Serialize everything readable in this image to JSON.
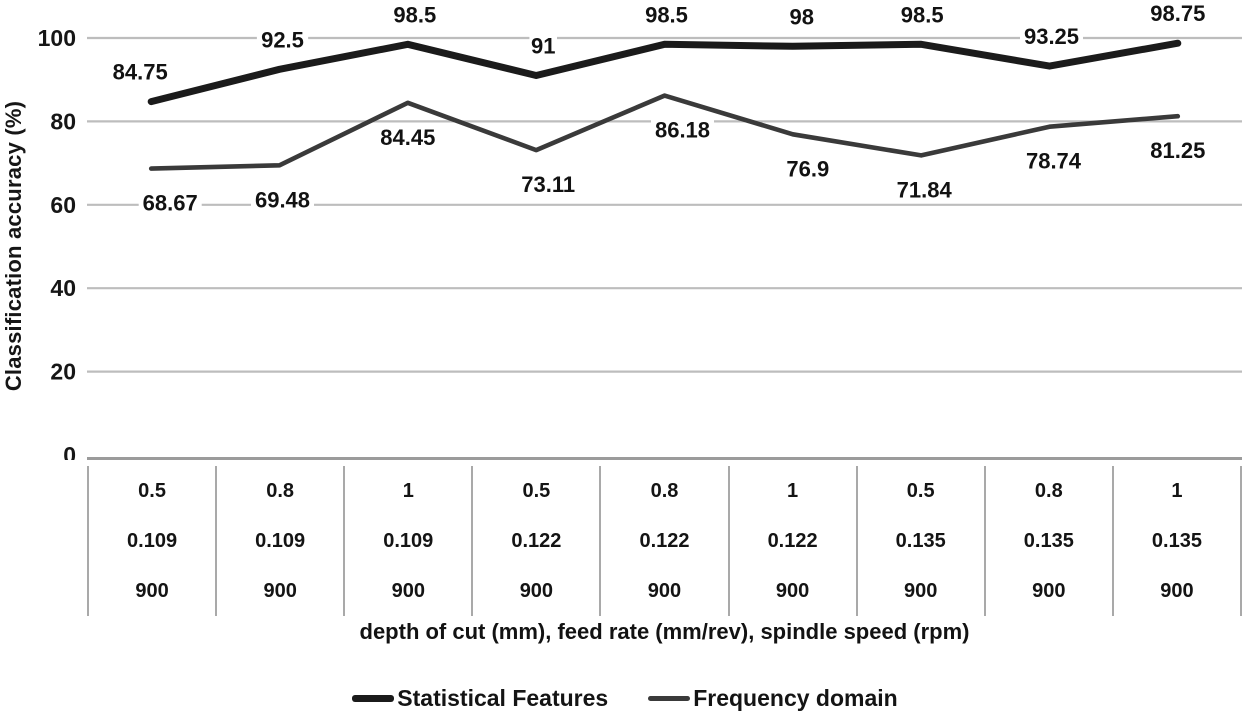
{
  "chart_data": {
    "type": "line",
    "title": "",
    "ylabel": "Classification accuracy (%)",
    "xlabel": "depth of cut (mm), feed rate (mm/rev), spindle speed (rpm)",
    "ylim": [
      0,
      100
    ],
    "yticks": [
      "0",
      "20",
      "40",
      "60",
      "80",
      "100"
    ],
    "grid": "horizontal-only",
    "gridline_color": "#bdbdbd",
    "background_color": "#ffffff",
    "legend_position": "bottom-center",
    "x_category_rows": [
      [
        "0.5",
        "0.8",
        "1",
        "0.5",
        "0.8",
        "1",
        "0.5",
        "0.8",
        "1"
      ],
      [
        "0.109",
        "0.109",
        "0.109",
        "0.122",
        "0.122",
        "0.122",
        "0.135",
        "0.135",
        "0.135"
      ],
      [
        "900",
        "900",
        "900",
        "900",
        "900",
        "900",
        "900",
        "900",
        "900"
      ]
    ],
    "series": [
      {
        "name": "Statistical Features",
        "color": "#1b1b1b",
        "line_width": 7,
        "label_side": "above",
        "values": [
          84.75,
          92.5,
          98.5,
          91,
          98.5,
          98,
          98.5,
          93.25,
          98.75
        ],
        "data_labels": [
          "84.75",
          "92.5",
          "98.5",
          "91",
          "98.5",
          "98",
          "98.5",
          "93.25",
          "98.75"
        ]
      },
      {
        "name": "Frequency domain",
        "color": "#3a3a3a",
        "line_width": 4.6,
        "label_side": "below",
        "values": [
          68.67,
          69.48,
          84.45,
          73.11,
          86.18,
          76.9,
          71.84,
          78.74,
          81.25
        ],
        "data_labels": [
          "68.67",
          "69.48",
          "84.45",
          "73.11",
          "86.18",
          "76.9",
          "71.84",
          "78.74",
          "81.25"
        ]
      }
    ]
  }
}
